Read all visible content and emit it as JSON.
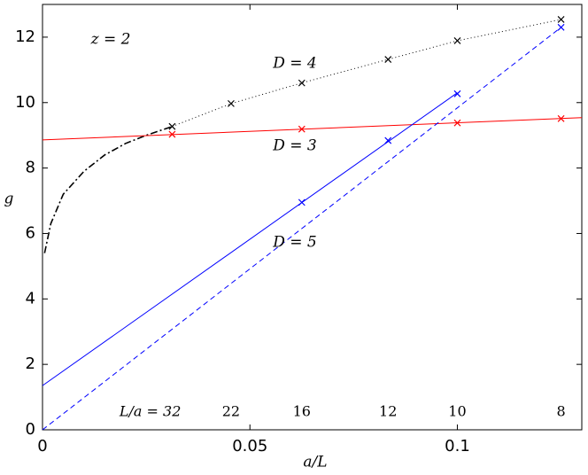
{
  "chart_data": {
    "type": "scatter",
    "x_label": "a/L",
    "y_label": "g",
    "xlim": [
      0,
      0.13
    ],
    "ylim": [
      0,
      13
    ],
    "xticks": [
      0,
      0.05,
      0.1
    ],
    "yticks": [
      0,
      2,
      4,
      6,
      8,
      10,
      12
    ],
    "grid": false,
    "annotation": "z = 2",
    "size_labels": [
      "L/a = 32",
      "22",
      "16",
      "12",
      "10",
      "8"
    ],
    "series": [
      {
        "name": "D = 4",
        "color": "#000000",
        "x": [
          0.03125,
          0.04545,
          0.0625,
          0.0833,
          0.1,
          0.125
        ],
        "values": [
          9.27,
          9.97,
          10.6,
          11.32,
          11.89,
          12.54
        ]
      },
      {
        "name": "D = 3",
        "color": "#ff0000",
        "x": [
          0.03125,
          0.0625,
          0.1,
          0.125
        ],
        "values": [
          9.03,
          9.19,
          9.38,
          9.51
        ]
      },
      {
        "name": "D = 5",
        "color": "#0000ff",
        "x": [
          0.0625,
          0.0833,
          0.1,
          0.125
        ],
        "values": [
          6.95,
          8.84,
          10.27,
          12.3
        ]
      }
    ],
    "fits": [
      {
        "color": "#000000",
        "dash": "1 3",
        "x": [
          0.03125,
          0.04545,
          0.0625,
          0.0833,
          0.1,
          0.125
        ],
        "values": [
          9.27,
          9.97,
          10.6,
          11.32,
          11.89,
          12.54
        ]
      },
      {
        "color": "#000000",
        "dash": "8 3 2 3",
        "x": [
          0.0005,
          0.002,
          0.005,
          0.01,
          0.015,
          0.02,
          0.025,
          0.03125
        ],
        "values": [
          5.4,
          6.3,
          7.2,
          7.9,
          8.4,
          8.75,
          9.0,
          9.27
        ]
      },
      {
        "color": "#ff0000",
        "dash": "none",
        "x": [
          0,
          0.13
        ],
        "values": [
          8.86,
          9.54
        ]
      },
      {
        "color": "#0000ff",
        "dash": "none",
        "x": [
          0,
          0.1
        ],
        "values": [
          1.35,
          10.3
        ]
      },
      {
        "color": "#0000ff",
        "dash": "6 4",
        "x": [
          0,
          0.125
        ],
        "values": [
          0,
          12.3
        ]
      }
    ]
  }
}
